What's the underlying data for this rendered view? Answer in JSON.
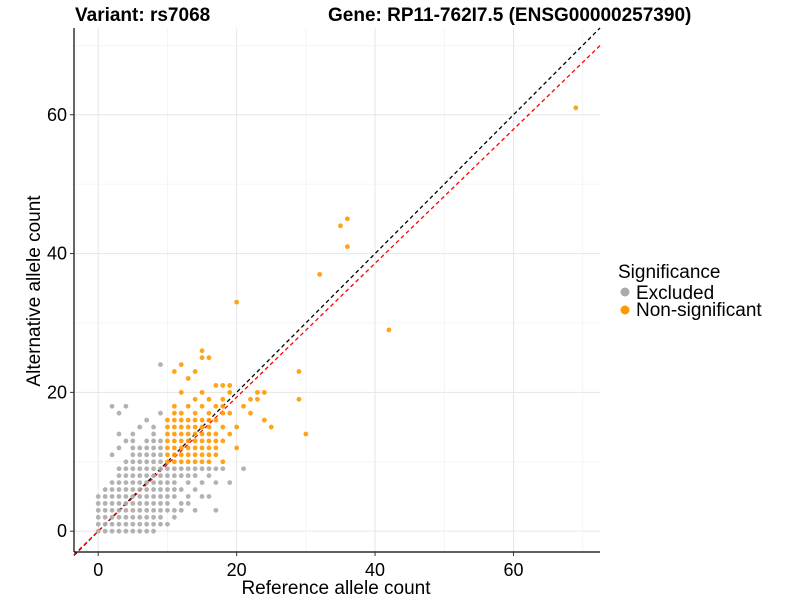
{
  "chart_data": {
    "type": "scatter",
    "title_variant": "Variant: rs7068",
    "title_gene": "Gene: RP11-762I7.5 (ENSG00000257390)",
    "xlabel": "Reference allele count",
    "ylabel": "Alternative allele count",
    "xlim": [
      -3.5,
      72.5
    ],
    "ylim": [
      -3,
      72.5
    ],
    "x_ticks": [
      0,
      20,
      40,
      60
    ],
    "y_ticks": [
      0,
      20,
      40,
      60
    ],
    "x_tick_labels": [
      "0",
      "20",
      "40",
      "60"
    ],
    "y_tick_labels": [
      "0",
      "20",
      "40",
      "60"
    ],
    "grid": true,
    "legend": {
      "title": "Significance",
      "position": "right",
      "entries": [
        {
          "label": "Excluded",
          "color": "#aaaaaa"
        },
        {
          "label": "Non-significant",
          "color": "#ff9900"
        }
      ]
    },
    "reference_lines": [
      {
        "name": "identity",
        "style": "dashed",
        "color": "#000000",
        "slope": 1,
        "intercept": 0
      },
      {
        "name": "fit",
        "style": "dashed",
        "color": "#ff0000",
        "slope": 0.965,
        "intercept": 0
      }
    ],
    "series": [
      {
        "name": "Excluded",
        "color": "#aaaaaa",
        "points": [
          [
            0,
            0
          ],
          [
            0,
            1
          ],
          [
            0,
            2
          ],
          [
            0,
            3
          ],
          [
            0,
            4
          ],
          [
            0,
            5
          ],
          [
            1,
            0
          ],
          [
            1,
            1
          ],
          [
            1,
            2
          ],
          [
            1,
            3
          ],
          [
            1,
            4
          ],
          [
            1,
            5
          ],
          [
            1,
            6
          ],
          [
            2,
            0
          ],
          [
            2,
            1
          ],
          [
            2,
            2
          ],
          [
            2,
            3
          ],
          [
            2,
            4
          ],
          [
            2,
            5
          ],
          [
            2,
            6
          ],
          [
            2,
            7
          ],
          [
            2,
            11
          ],
          [
            2,
            18
          ],
          [
            3,
            0
          ],
          [
            3,
            1
          ],
          [
            3,
            2
          ],
          [
            3,
            3
          ],
          [
            3,
            4
          ],
          [
            3,
            5
          ],
          [
            3,
            6
          ],
          [
            3,
            7
          ],
          [
            3,
            8
          ],
          [
            3,
            9
          ],
          [
            3,
            12
          ],
          [
            3,
            14
          ],
          [
            3,
            17
          ],
          [
            4,
            0
          ],
          [
            4,
            1
          ],
          [
            4,
            2
          ],
          [
            4,
            3
          ],
          [
            4,
            4
          ],
          [
            4,
            5
          ],
          [
            4,
            6
          ],
          [
            4,
            7
          ],
          [
            4,
            8
          ],
          [
            4,
            9
          ],
          [
            4,
            10
          ],
          [
            4,
            13
          ],
          [
            4,
            18
          ],
          [
            5,
            0
          ],
          [
            5,
            1
          ],
          [
            5,
            2
          ],
          [
            5,
            3
          ],
          [
            5,
            4
          ],
          [
            5,
            5
          ],
          [
            5,
            6
          ],
          [
            5,
            7
          ],
          [
            5,
            8
          ],
          [
            5,
            9
          ],
          [
            5,
            10
          ],
          [
            5,
            11
          ],
          [
            5,
            12
          ],
          [
            5,
            13
          ],
          [
            5,
            14
          ],
          [
            6,
            0
          ],
          [
            6,
            1
          ],
          [
            6,
            2
          ],
          [
            6,
            3
          ],
          [
            6,
            4
          ],
          [
            6,
            5
          ],
          [
            6,
            6
          ],
          [
            6,
            7
          ],
          [
            6,
            8
          ],
          [
            6,
            9
          ],
          [
            6,
            10
          ],
          [
            6,
            11
          ],
          [
            6,
            12
          ],
          [
            6,
            15
          ],
          [
            7,
            0
          ],
          [
            7,
            1
          ],
          [
            7,
            2
          ],
          [
            7,
            3
          ],
          [
            7,
            4
          ],
          [
            7,
            5
          ],
          [
            7,
            6
          ],
          [
            7,
            7
          ],
          [
            7,
            8
          ],
          [
            7,
            9
          ],
          [
            7,
            10
          ],
          [
            7,
            11
          ],
          [
            7,
            12
          ],
          [
            7,
            13
          ],
          [
            7,
            16
          ],
          [
            8,
            0
          ],
          [
            8,
            1
          ],
          [
            8,
            2
          ],
          [
            8,
            3
          ],
          [
            8,
            4
          ],
          [
            8,
            5
          ],
          [
            8,
            6
          ],
          [
            8,
            7
          ],
          [
            8,
            8
          ],
          [
            8,
            9
          ],
          [
            8,
            10
          ],
          [
            8,
            11
          ],
          [
            8,
            12
          ],
          [
            8,
            13
          ],
          [
            8,
            14
          ],
          [
            8,
            15
          ],
          [
            9,
            1
          ],
          [
            9,
            2
          ],
          [
            9,
            3
          ],
          [
            9,
            4
          ],
          [
            9,
            5
          ],
          [
            9,
            6
          ],
          [
            9,
            7
          ],
          [
            9,
            8
          ],
          [
            9,
            9
          ],
          [
            9,
            10
          ],
          [
            9,
            11
          ],
          [
            9,
            12
          ],
          [
            9,
            13
          ],
          [
            9,
            17
          ],
          [
            9,
            24
          ],
          [
            10,
            1
          ],
          [
            10,
            3
          ],
          [
            10,
            4
          ],
          [
            10,
            5
          ],
          [
            10,
            6
          ],
          [
            10,
            7
          ],
          [
            10,
            8
          ],
          [
            10,
            9
          ],
          [
            11,
            2
          ],
          [
            11,
            3
          ],
          [
            11,
            5
          ],
          [
            11,
            6
          ],
          [
            11,
            7
          ],
          [
            11,
            8
          ],
          [
            11,
            9
          ],
          [
            12,
            3
          ],
          [
            12,
            4
          ],
          [
            12,
            6
          ],
          [
            12,
            8
          ],
          [
            12,
            9
          ],
          [
            13,
            4
          ],
          [
            13,
            5
          ],
          [
            13,
            7
          ],
          [
            13,
            8
          ],
          [
            13,
            9
          ],
          [
            14,
            3
          ],
          [
            14,
            6
          ],
          [
            14,
            8
          ],
          [
            14,
            9
          ],
          [
            15,
            5
          ],
          [
            15,
            7
          ],
          [
            15,
            9
          ],
          [
            16,
            5
          ],
          [
            16,
            8
          ],
          [
            16,
            9
          ],
          [
            17,
            3
          ],
          [
            17,
            7
          ],
          [
            17,
            9
          ],
          [
            18,
            9
          ],
          [
            19,
            7
          ],
          [
            21,
            9
          ]
        ]
      },
      {
        "name": "Non-significant",
        "color": "#ff9900",
        "points": [
          [
            10,
            10
          ],
          [
            10,
            11
          ],
          [
            10,
            12
          ],
          [
            10,
            13
          ],
          [
            10,
            14
          ],
          [
            10,
            15
          ],
          [
            10,
            16
          ],
          [
            11,
            10
          ],
          [
            11,
            11
          ],
          [
            11,
            12
          ],
          [
            11,
            13
          ],
          [
            11,
            14
          ],
          [
            11,
            15
          ],
          [
            11,
            16
          ],
          [
            11,
            17
          ],
          [
            11,
            18
          ],
          [
            11,
            23
          ],
          [
            12,
            10
          ],
          [
            12,
            11
          ],
          [
            12,
            12
          ],
          [
            12,
            13
          ],
          [
            12,
            14
          ],
          [
            12,
            15
          ],
          [
            12,
            16
          ],
          [
            12,
            17
          ],
          [
            12,
            20
          ],
          [
            12,
            24
          ],
          [
            13,
            10
          ],
          [
            13,
            11
          ],
          [
            13,
            12
          ],
          [
            13,
            13
          ],
          [
            13,
            14
          ],
          [
            13,
            15
          ],
          [
            13,
            16
          ],
          [
            13,
            18
          ],
          [
            13,
            22
          ],
          [
            14,
            10
          ],
          [
            14,
            11
          ],
          [
            14,
            12
          ],
          [
            14,
            13
          ],
          [
            14,
            14
          ],
          [
            14,
            15
          ],
          [
            14,
            16
          ],
          [
            14,
            17
          ],
          [
            14,
            19
          ],
          [
            14,
            23
          ],
          [
            15,
            10
          ],
          [
            15,
            11
          ],
          [
            15,
            12
          ],
          [
            15,
            13
          ],
          [
            15,
            14
          ],
          [
            15,
            15
          ],
          [
            15,
            16
          ],
          [
            15,
            18
          ],
          [
            15,
            20
          ],
          [
            15,
            25
          ],
          [
            15,
            26
          ],
          [
            16,
            10
          ],
          [
            16,
            11
          ],
          [
            16,
            12
          ],
          [
            16,
            13
          ],
          [
            16,
            14
          ],
          [
            16,
            15
          ],
          [
            16,
            16
          ],
          [
            16,
            17
          ],
          [
            16,
            19
          ],
          [
            16,
            25
          ],
          [
            17,
            11
          ],
          [
            17,
            12
          ],
          [
            17,
            13
          ],
          [
            17,
            14
          ],
          [
            17,
            16
          ],
          [
            17,
            18
          ],
          [
            17,
            21
          ],
          [
            18,
            10
          ],
          [
            18,
            13
          ],
          [
            18,
            15
          ],
          [
            18,
            17
          ],
          [
            18,
            18
          ],
          [
            18,
            19
          ],
          [
            18,
            21
          ],
          [
            19,
            14
          ],
          [
            19,
            17
          ],
          [
            19,
            20
          ],
          [
            19,
            21
          ],
          [
            20,
            12
          ],
          [
            20,
            15
          ],
          [
            20,
            33
          ],
          [
            21,
            18
          ],
          [
            22,
            17
          ],
          [
            22,
            19
          ],
          [
            23,
            19
          ],
          [
            23,
            20
          ],
          [
            24,
            16
          ],
          [
            24,
            20
          ],
          [
            25,
            15
          ],
          [
            29,
            19
          ],
          [
            29,
            23
          ],
          [
            30,
            14
          ],
          [
            32,
            37
          ],
          [
            35,
            44
          ],
          [
            36,
            41
          ],
          [
            36,
            45
          ],
          [
            42,
            29
          ],
          [
            69,
            61
          ]
        ]
      }
    ]
  }
}
